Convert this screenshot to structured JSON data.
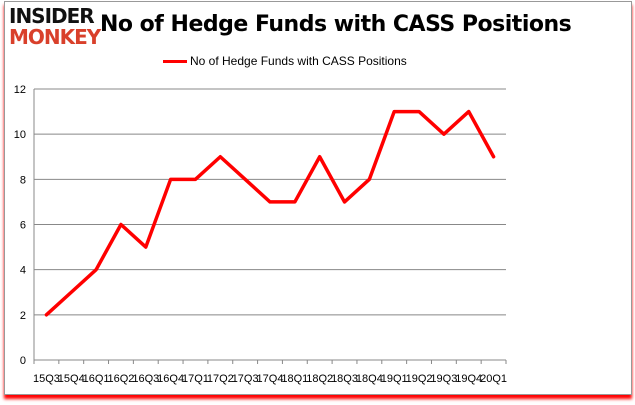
{
  "logo": {
    "line1": "INSIDER",
    "line2": "MONKEY"
  },
  "chart_data": {
    "type": "line",
    "title": "No of Hedge Funds with CASS Positions",
    "categories": [
      "15Q3",
      "15Q4",
      "16Q1",
      "16Q2",
      "16Q3",
      "16Q4",
      "17Q1",
      "17Q2",
      "17Q3",
      "17Q4",
      "18Q1",
      "18Q2",
      "18Q3",
      "18Q4",
      "19Q1",
      "19Q2",
      "19Q3",
      "19Q4",
      "20Q1"
    ],
    "series": [
      {
        "name": "No of Hedge Funds with CASS Positions",
        "values": [
          2,
          3,
          4,
          6,
          5,
          8,
          8,
          9,
          8,
          7,
          7,
          9,
          7,
          8,
          11,
          11,
          10,
          11,
          9
        ],
        "color": "#ff0000"
      }
    ],
    "ylim": [
      0,
      12
    ],
    "yticks": [
      0,
      2,
      4,
      6,
      8,
      10,
      12
    ],
    "grid": true,
    "legend": "top"
  }
}
